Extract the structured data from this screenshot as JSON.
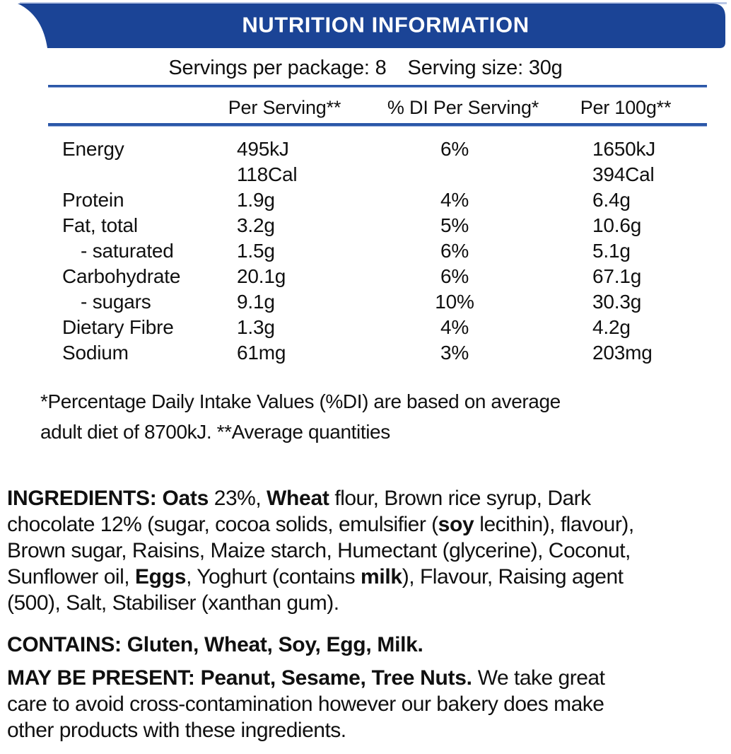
{
  "banner": {
    "title": "NUTRITION INFORMATION",
    "background_color": "#1b4496",
    "text_color": "#ffffff"
  },
  "serving_info": {
    "servings_per_package": "Servings per package: 8",
    "serving_size": "Serving size: 30g"
  },
  "table": {
    "columns": [
      "Per Serving**",
      "% DI Per Serving*",
      "Per 100g**"
    ],
    "rows": [
      {
        "nutrient": "Energy",
        "per_serving": "495kJ\n118Cal",
        "di_per_serving": "6%",
        "per_100g": "1650kJ\n394Cal"
      },
      {
        "nutrient": "Protein",
        "per_serving": "1.9g",
        "di_per_serving": "4%",
        "per_100g": "6.4g"
      },
      {
        "nutrient": "Fat, total",
        "per_serving": "3.2g",
        "di_per_serving": "5%",
        "per_100g": "10.6g"
      },
      {
        "nutrient": "- saturated",
        "per_serving": "1.5g",
        "di_per_serving": "6%",
        "per_100g": "5.1g"
      },
      {
        "nutrient": "Carbohydrate",
        "per_serving": "20.1g",
        "di_per_serving": "6%",
        "per_100g": "67.1g"
      },
      {
        "nutrient": "- sugars",
        "per_serving": "9.1g",
        "di_per_serving": "10%",
        "per_100g": "30.3g"
      },
      {
        "nutrient": "Dietary Fibre",
        "per_serving": "1.3g",
        "di_per_serving": "4%",
        "per_100g": "4.2g"
      },
      {
        "nutrient": "Sodium",
        "per_serving": "61mg",
        "di_per_serving": "3%",
        "per_100g": "203mg"
      }
    ]
  },
  "footnote": "*Percentage Daily Intake Values (%DI) are based on average\nadult diet of 8700kJ. **Average quantities",
  "ingredients": {
    "segments": [
      {
        "t": "INGREDIENTS: ",
        "b": true
      },
      {
        "t": "Oats",
        "b": true
      },
      {
        "t": " 23%, ",
        "b": false
      },
      {
        "t": "Wheat",
        "b": true
      },
      {
        "t": " flour, Brown rice syrup, Dark\nchocolate 12% (sugar, cocoa solids, emulsifier (",
        "b": false
      },
      {
        "t": "soy",
        "b": true
      },
      {
        "t": " lecithin), flavour),\nBrown sugar, Raisins, Maize starch, Humectant (glycerine), Coconut,\nSunflower oil, ",
        "b": false
      },
      {
        "t": "Eggs",
        "b": true
      },
      {
        "t": ", Yoghurt (contains ",
        "b": false
      },
      {
        "t": "milk",
        "b": true
      },
      {
        "t": "), Flavour, Raising agent\n(500), Salt, Stabiliser (xanthan gum).",
        "b": false
      }
    ]
  },
  "contains": {
    "segments": [
      {
        "t": "CONTAINS: Gluten, Wheat, Soy, Egg, Milk.",
        "b": true
      }
    ]
  },
  "may_be_present": {
    "segments": [
      {
        "t": "MAY BE PRESENT: Peanut, Sesame, Tree Nuts. ",
        "b": true
      },
      {
        "t": "We take great\ncare to avoid cross-contamination however our bakery does make\nother products with these ingredients.",
        "b": false
      }
    ]
  },
  "colors": {
    "banner_blue": "#1b4496",
    "rule_blue": "#2b57a8",
    "text_black": "#101010"
  }
}
